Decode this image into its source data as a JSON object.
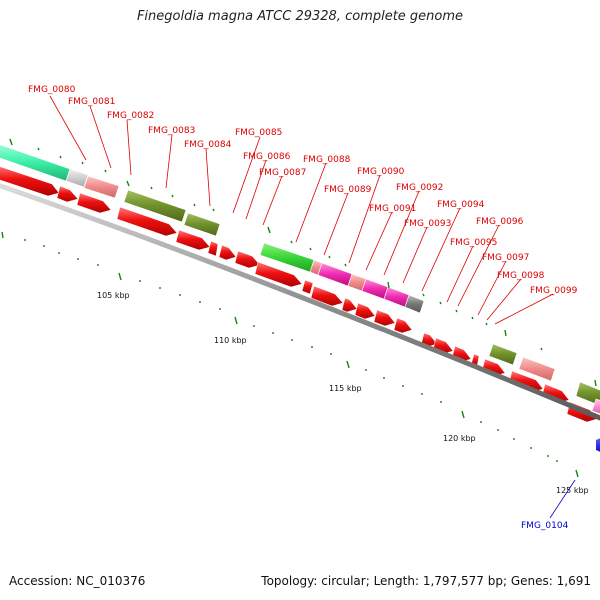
{
  "title": "Finegoldia magna ATCC 29328, complete genome",
  "accession": {
    "label": "Accession:",
    "value": "NC_010376"
  },
  "summary": {
    "topology_label": "Topology:",
    "topology": "circular",
    "length_label": "Length:",
    "length": "1,797,577 bp",
    "genes_label": "Genes:",
    "genes": "1,691"
  },
  "scale_labels": [
    "105 kbp",
    "110 kbp",
    "115 kbp",
    "120 kbp",
    "125 kbp"
  ],
  "gene_labels": [
    "FMG_0080",
    "FMG_0081",
    "FMG_0082",
    "FMG_0083",
    "FMG_0084",
    "FMG_0085",
    "FMG_0086",
    "FMG_0087",
    "FMG_0088",
    "FMG_0089",
    "FMG_0090",
    "FMG_0091",
    "FMG_0092",
    "FMG_0093",
    "FMG_0094",
    "FMG_0095",
    "FMG_0096",
    "FMG_0097",
    "FMG_0098",
    "FMG_0099",
    "FMG_0104"
  ],
  "colors": {
    "cds": "#ee1111",
    "backbone": "#999999",
    "label_red": "#dd0000",
    "label_blue": "#0000cc",
    "tick": "#118811"
  }
}
